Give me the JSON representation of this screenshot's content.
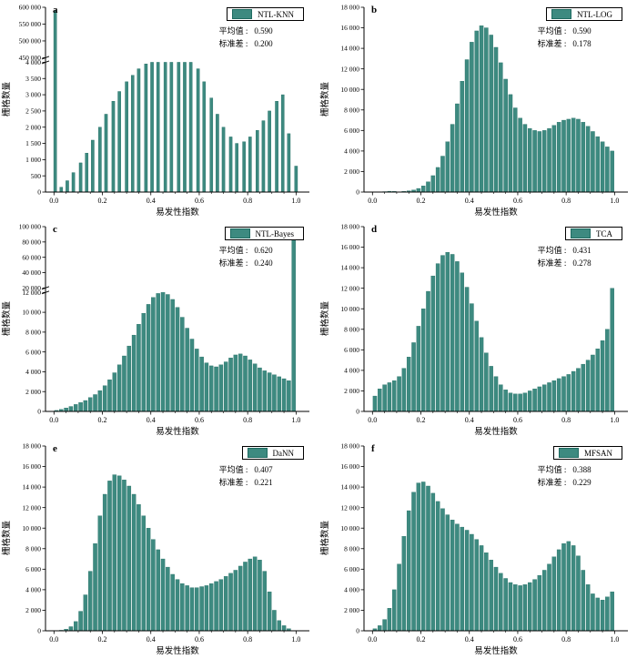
{
  "labels": {
    "x_axis": "易发性指数",
    "y_axis": "栅格数量",
    "mean": "平均值 :",
    "std": "标准差 :",
    "x_ticks": [
      "0.0",
      "0.2",
      "0.4",
      "0.6",
      "0.8",
      "1.0"
    ]
  },
  "colors": {
    "bar": "#3d8a80",
    "bar_stroke": "#1f6b61",
    "axis": "#000000"
  },
  "chart_data": [
    {
      "type": "bar",
      "panel_label": "a",
      "legend": "NTL-KNN",
      "mean": "0.590",
      "std": "0.200",
      "xlabel": "易发性指数",
      "ylabel": "栅格数量",
      "bar_width": 0.012,
      "bars_x": [
        0.005,
        0.03,
        0.055,
        0.08,
        0.11,
        0.135,
        0.16,
        0.19,
        0.215,
        0.245,
        0.27,
        0.3,
        0.325,
        0.35,
        0.38,
        0.405,
        0.43,
        0.46,
        0.485,
        0.515,
        0.54,
        0.565,
        0.595,
        0.62,
        0.65,
        0.675,
        0.7,
        0.73,
        0.755,
        0.785,
        0.81,
        0.84,
        0.865,
        0.89,
        0.92,
        0.945,
        0.97,
        1.0
      ],
      "values": [
        590000,
        150,
        350,
        600,
        900,
        1200,
        1600,
        2000,
        2400,
        2800,
        3100,
        3400,
        3600,
        3800,
        3950,
        4000,
        4000,
        4000,
        4000,
        4000,
        4000,
        4000,
        3800,
        3400,
        2900,
        2400,
        2000,
        1700,
        1500,
        1550,
        1700,
        1900,
        2200,
        2500,
        2800,
        3000,
        1800,
        800
      ],
      "y": {
        "break": true,
        "high_frac": 0.28,
        "low": {
          "min": 0,
          "max": 4000,
          "tick_labels": [
            "0",
            "500",
            "1 000",
            "1 500",
            "2 000",
            "2 500",
            "3 000",
            "3 500",
            "4 000"
          ]
        },
        "high": {
          "min": 450000,
          "max": 600000,
          "tick_labels": [
            "450 000",
            "500 000",
            "550 000",
            "600 000"
          ]
        }
      }
    },
    {
      "type": "bar",
      "panel_label": "b",
      "legend": "NTL-LOG",
      "mean": "0.590",
      "std": "0.178",
      "xlabel": "易发性指数",
      "ylabel": "栅格数量",
      "bin_start": 0,
      "bin_width": 0.02,
      "values": [
        0,
        0,
        40,
        80,
        60,
        0,
        60,
        120,
        200,
        350,
        600,
        1000,
        1600,
        2400,
        3500,
        4900,
        6600,
        8600,
        10800,
        12900,
        14600,
        15700,
        16200,
        16000,
        15300,
        14100,
        12600,
        11000,
        9500,
        8200,
        7200,
        6600,
        6200,
        6000,
        5900,
        6000,
        6200,
        6500,
        6800,
        7000,
        7100,
        7200,
        7100,
        6800,
        6400,
        5900,
        5400,
        4900,
        4400,
        4000
      ],
      "y": {
        "break": false,
        "min": 0,
        "max": 18000,
        "tick_labels": [
          "0",
          "2 000",
          "4 000",
          "6 000",
          "8 000",
          "10 000",
          "12 000",
          "14 000",
          "16 000",
          "18 000"
        ]
      }
    },
    {
      "type": "bar",
      "panel_label": "c",
      "legend": "NTL-Bayes",
      "mean": "0.620",
      "std": "0.240",
      "xlabel": "易发性指数",
      "ylabel": "栅格数量",
      "bin_start": 0,
      "bin_width": 0.02,
      "values": [
        100,
        200,
        350,
        500,
        700,
        900,
        1100,
        1400,
        1700,
        2100,
        2600,
        3200,
        3900,
        4700,
        5600,
        6600,
        7700,
        8800,
        9900,
        10800,
        11500,
        11900,
        12000,
        11800,
        11300,
        10500,
        9500,
        8400,
        7300,
        6300,
        5500,
        4900,
        4600,
        4500,
        4700,
        5000,
        5400,
        5700,
        5800,
        5600,
        5200,
        4800,
        4400,
        4100,
        3900,
        3700,
        3500,
        3300,
        3100,
        95000
      ],
      "y": {
        "break": true,
        "high_frac": 0.34,
        "low": {
          "min": 0,
          "max": 12000,
          "tick_labels": [
            "0",
            "2 000",
            "4 000",
            "6 000",
            "8 000",
            "10 000",
            "12 000"
          ]
        },
        "high": {
          "min": 20000,
          "max": 100000,
          "tick_labels": [
            "20 000",
            "40 000",
            "60 000",
            "80 000",
            "100 000"
          ]
        }
      }
    },
    {
      "type": "bar",
      "panel_label": "d",
      "legend": "TCA",
      "mean": "0.431",
      "std": "0.278",
      "xlabel": "易发性指数",
      "ylabel": "栅格数量",
      "bin_start": 0,
      "bin_width": 0.02,
      "values": [
        1500,
        2200,
        2600,
        2800,
        3000,
        3400,
        4200,
        5300,
        6700,
        8300,
        10000,
        11700,
        13200,
        14400,
        15200,
        15500,
        15300,
        14600,
        13500,
        12100,
        10500,
        8800,
        7200,
        5700,
        4400,
        3400,
        2600,
        2100,
        1800,
        1700,
        1700,
        1800,
        2000,
        2200,
        2400,
        2600,
        2800,
        3000,
        3200,
        3400,
        3600,
        3900,
        4200,
        4600,
        5000,
        5500,
        6100,
        6900,
        8000,
        12000
      ],
      "y": {
        "break": false,
        "min": 0,
        "max": 18000,
        "tick_labels": [
          "0",
          "2 000",
          "4 000",
          "6 000",
          "8 000",
          "10 000",
          "12 000",
          "14 000",
          "16 000",
          "18 000"
        ]
      }
    },
    {
      "type": "bar",
      "panel_label": "e",
      "legend": "DaNN",
      "mean": "0.407",
      "std": "0.221",
      "xlabel": "易发性指数",
      "ylabel": "栅格数量",
      "bin_start": 0,
      "bin_width": 0.02,
      "values": [
        0,
        50,
        150,
        400,
        900,
        1900,
        3500,
        5800,
        8500,
        11200,
        13300,
        14600,
        15200,
        15100,
        14700,
        14100,
        13300,
        12300,
        11200,
        10000,
        8900,
        7900,
        7000,
        6200,
        5500,
        5000,
        4600,
        4400,
        4200,
        4200,
        4300,
        4400,
        4600,
        4800,
        5000,
        5300,
        5600,
        5900,
        6300,
        6700,
        7000,
        7200,
        6900,
        5800,
        3800,
        2000,
        1000,
        500,
        200,
        0
      ],
      "y": {
        "break": false,
        "min": 0,
        "max": 18000,
        "tick_labels": [
          "0",
          "2 000",
          "4 000",
          "6 000",
          "8 000",
          "10 000",
          "12 000",
          "14 000",
          "16 000",
          "18 000"
        ]
      }
    },
    {
      "type": "bar",
      "panel_label": "f",
      "legend": "MFSAN",
      "mean": "0.388",
      "std": "0.229",
      "xlabel": "易发性指数",
      "ylabel": "栅格数量",
      "bin_start": 0,
      "bin_width": 0.02,
      "values": [
        200,
        500,
        1100,
        2200,
        4000,
        6500,
        9200,
        11700,
        13500,
        14400,
        14500,
        14100,
        13400,
        12600,
        11900,
        11300,
        10800,
        10400,
        10100,
        9800,
        9400,
        8900,
        8300,
        7600,
        6900,
        6200,
        5600,
        5100,
        4700,
        4500,
        4400,
        4500,
        4700,
        5000,
        5400,
        5900,
        6500,
        7200,
        7900,
        8500,
        8700,
        8300,
        7300,
        5900,
        4500,
        3600,
        3200,
        3000,
        3300,
        3800
      ],
      "y": {
        "break": false,
        "min": 0,
        "max": 18000,
        "tick_labels": [
          "0",
          "2 000",
          "4 000",
          "6 000",
          "8 000",
          "10 000",
          "12 000",
          "14 000",
          "16 000",
          "18 000"
        ]
      }
    }
  ]
}
